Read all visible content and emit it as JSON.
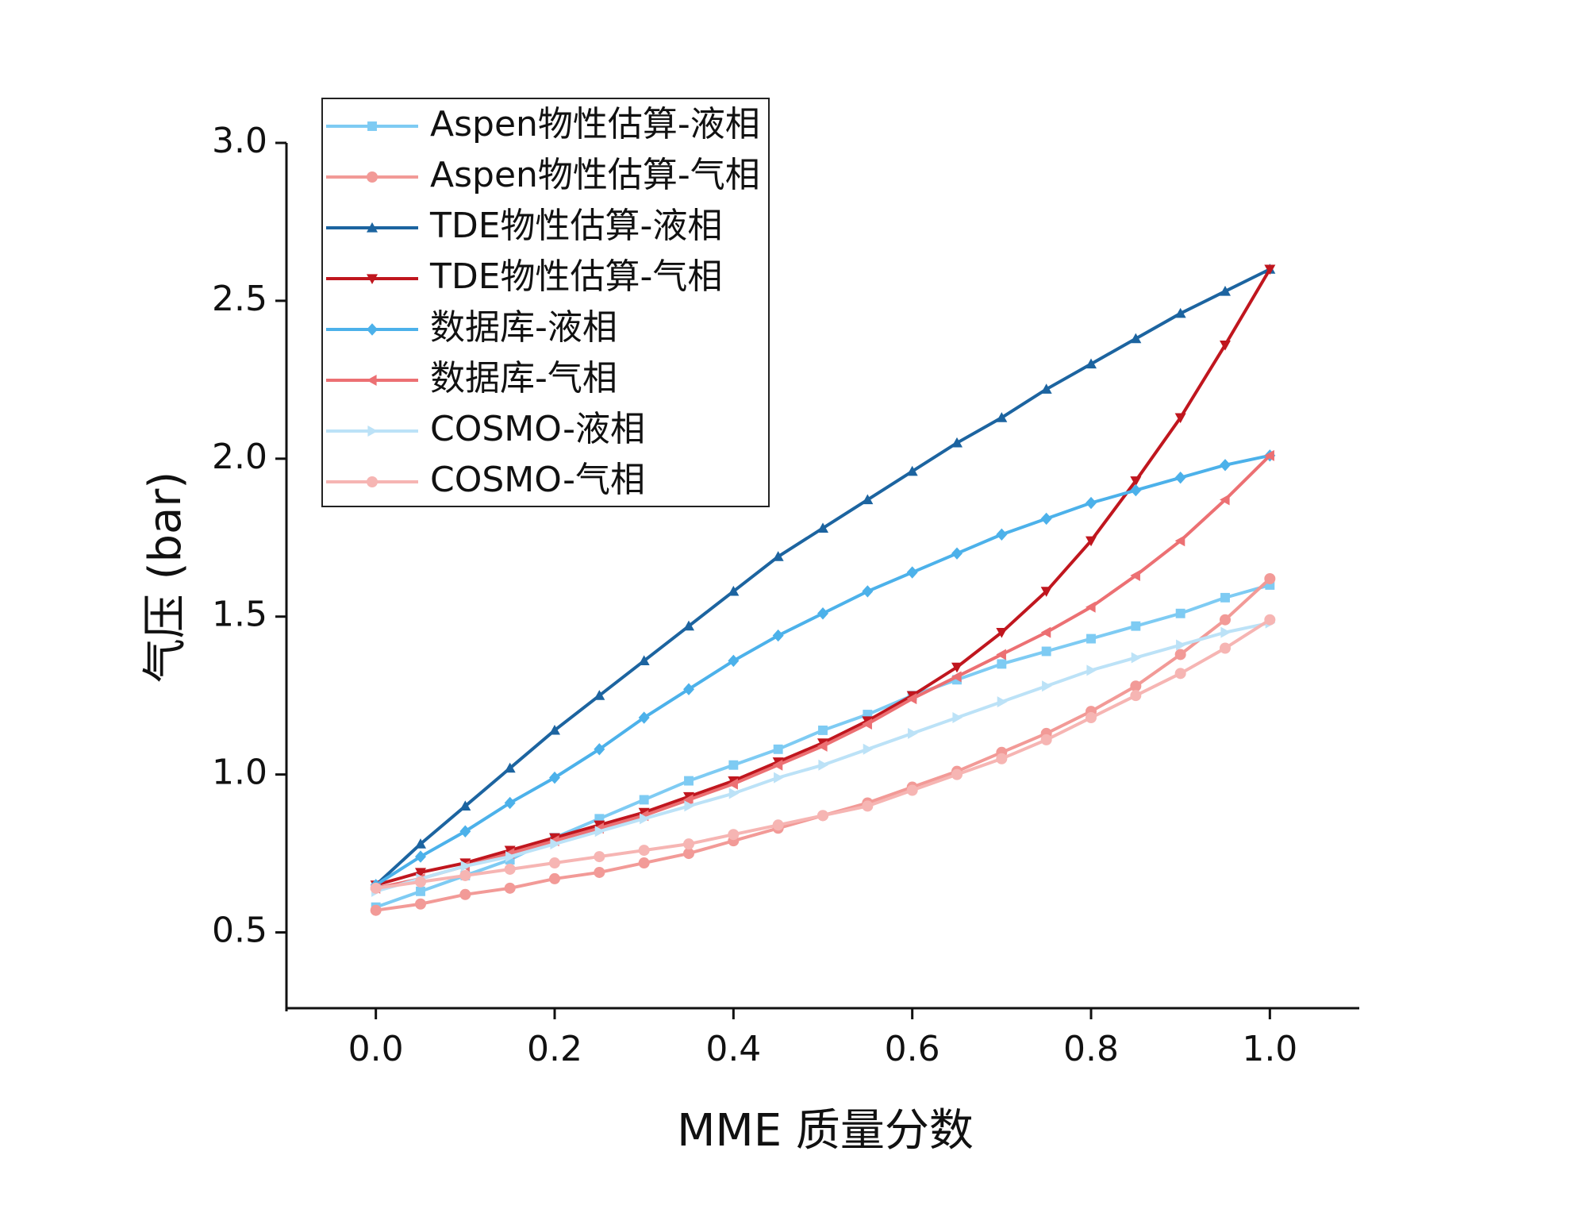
{
  "chart_data": {
    "type": "line",
    "xlabel": "MME 质量分数",
    "ylabel": "气压 (bar)",
    "x": [
      0,
      0.05,
      0.1,
      0.15,
      0.2,
      0.25,
      0.3,
      0.35,
      0.4,
      0.45,
      0.5,
      0.55,
      0.6,
      0.65,
      0.7,
      0.75,
      0.8,
      0.85,
      0.9,
      0.95,
      1
    ],
    "xlim": [
      -0.1,
      1.1
    ],
    "xticks": [
      {
        "value": 0,
        "label": "0.0"
      },
      0.2,
      0.4,
      0.6,
      0.8,
      {
        "value": 1,
        "label": "1.0"
      }
    ],
    "ylim": [
      0.25,
      3.0
    ],
    "yticks": [
      0.5,
      {
        "value": 1,
        "label": "1.0"
      },
      1.5,
      {
        "value": 2,
        "label": "2.0"
      },
      2.5,
      {
        "value": 3,
        "label": "3.0"
      }
    ],
    "legend": "upper left",
    "series": [
      {
        "name": "Aspen物性估算-液相",
        "color": "#7ecbf3",
        "marker": "square",
        "values": [
          0.58,
          0.63,
          0.68,
          0.73,
          0.8,
          0.86,
          0.92,
          0.98,
          1.03,
          1.08,
          1.14,
          1.19,
          1.25,
          1.3,
          1.35,
          1.39,
          1.43,
          1.47,
          1.51,
          1.56,
          1.6
        ]
      },
      {
        "name": "Aspen物性估算-气相",
        "color": "#f29a97",
        "marker": "circle",
        "values": [
          0.57,
          0.59,
          0.62,
          0.64,
          0.67,
          0.69,
          0.72,
          0.75,
          0.79,
          0.83,
          0.87,
          0.91,
          0.96,
          1.01,
          1.07,
          1.13,
          1.2,
          1.28,
          1.38,
          1.49,
          1.62
        ]
      },
      {
        "name": "TDE物性估算-液相",
        "color": "#1c64a0",
        "marker": "triangle-up",
        "values": [
          0.65,
          0.78,
          0.9,
          1.02,
          1.14,
          1.25,
          1.36,
          1.47,
          1.58,
          1.69,
          1.78,
          1.87,
          1.96,
          2.05,
          2.13,
          2.22,
          2.3,
          2.38,
          2.46,
          2.53,
          2.6
        ]
      },
      {
        "name": "TDE物性估算-气相",
        "color": "#c0161e",
        "marker": "triangle-down",
        "values": [
          0.65,
          0.69,
          0.72,
          0.76,
          0.8,
          0.84,
          0.88,
          0.93,
          0.98,
          1.04,
          1.1,
          1.17,
          1.25,
          1.34,
          1.45,
          1.58,
          1.74,
          1.93,
          2.13,
          2.36,
          2.6
        ]
      },
      {
        "name": "数据库-液相",
        "color": "#4cb1ea",
        "marker": "diamond",
        "values": [
          0.65,
          0.74,
          0.82,
          0.91,
          0.99,
          1.08,
          1.18,
          1.27,
          1.36,
          1.44,
          1.51,
          1.58,
          1.64,
          1.7,
          1.76,
          1.81,
          1.86,
          1.9,
          1.94,
          1.98,
          2.01
        ]
      },
      {
        "name": "数据库-气相",
        "color": "#ec7073",
        "marker": "triangle-left",
        "values": [
          0.64,
          0.67,
          0.71,
          0.75,
          0.79,
          0.83,
          0.87,
          0.92,
          0.97,
          1.03,
          1.09,
          1.16,
          1.24,
          1.31,
          1.38,
          1.45,
          1.53,
          1.63,
          1.74,
          1.87,
          2.01
        ]
      },
      {
        "name": "COSMO-液相",
        "color": "#bce2f7",
        "marker": "triangle-right",
        "values": [
          0.63,
          0.67,
          0.71,
          0.74,
          0.78,
          0.82,
          0.86,
          0.9,
          0.94,
          0.99,
          1.03,
          1.08,
          1.13,
          1.18,
          1.23,
          1.28,
          1.33,
          1.37,
          1.41,
          1.45,
          1.48
        ]
      },
      {
        "name": "COSMO-气相",
        "color": "#f6b5b3",
        "marker": "circle",
        "values": [
          0.64,
          0.66,
          0.68,
          0.7,
          0.72,
          0.74,
          0.76,
          0.78,
          0.81,
          0.84,
          0.87,
          0.9,
          0.95,
          1.0,
          1.05,
          1.11,
          1.18,
          1.25,
          1.32,
          1.4,
          1.49
        ]
      }
    ]
  }
}
